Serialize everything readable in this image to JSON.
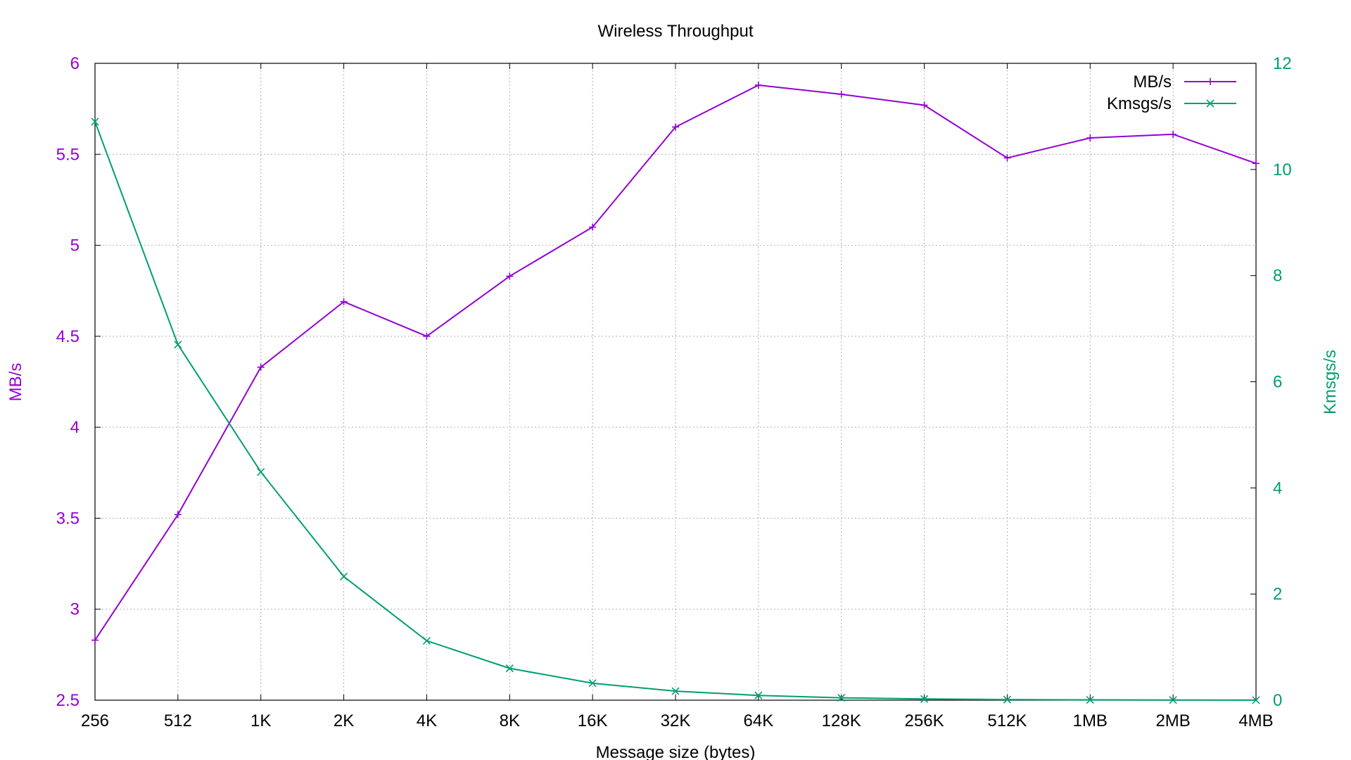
{
  "chart_data": {
    "type": "line",
    "title": "Wireless Throughput",
    "xlabel": "Message size (bytes)",
    "ylabel": "MB/s",
    "y2label": "Kmsgs/s",
    "categories": [
      "256",
      "512",
      "1K",
      "2K",
      "4K",
      "8K",
      "16K",
      "32K",
      "64K",
      "128K",
      "256K",
      "512K",
      "1MB",
      "2MB",
      "4MB"
    ],
    "ylim": [
      2.5,
      6
    ],
    "y2lim": [
      0,
      12
    ],
    "yticks": [
      "2.5",
      "3",
      "3.5",
      "4",
      "4.5",
      "5",
      "5.5",
      "6"
    ],
    "y2ticks": [
      "0",
      "2",
      "4",
      "6",
      "8",
      "10",
      "12"
    ],
    "grid": true,
    "legend_position": "top-right",
    "series": [
      {
        "name": "MB/s",
        "axis": "left",
        "color": "#9400d3",
        "marker": "plus",
        "values": [
          2.83,
          3.52,
          4.33,
          4.69,
          4.5,
          4.83,
          5.1,
          5.65,
          5.88,
          5.83,
          5.77,
          5.48,
          5.59,
          5.61,
          5.45
        ]
      },
      {
        "name": "Kmsgs/s",
        "axis": "right",
        "color": "#009e73",
        "marker": "x",
        "values": [
          10.9,
          6.7,
          4.3,
          2.33,
          1.12,
          0.6,
          0.32,
          0.17,
          0.09,
          0.045,
          0.023,
          0.011,
          0.006,
          0.003,
          0.001
        ]
      }
    ]
  }
}
